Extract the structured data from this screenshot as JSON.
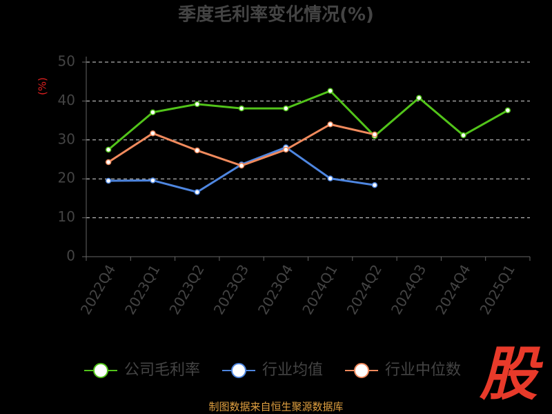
{
  "chart_data": {
    "type": "line",
    "title": "季度毛利率变化情况(%)",
    "y_label": "(%)",
    "categories": [
      "2022Q4",
      "2023Q1",
      "2023Q2",
      "2023Q3",
      "2023Q4",
      "2024Q1",
      "2024Q2",
      "2024Q3",
      "2024Q4",
      "2025Q1"
    ],
    "series": [
      {
        "name": "公司毛利率",
        "color": "#52c41a",
        "values": [
          27.5,
          37.1,
          39.2,
          38.1,
          38.1,
          42.6,
          31.0,
          40.8,
          31.2,
          37.6
        ]
      },
      {
        "name": "行业均值",
        "color": "#4e86e0",
        "values": [
          19.5,
          19.6,
          16.6,
          23.7,
          28.1,
          20.1,
          18.4,
          null,
          null,
          null
        ]
      },
      {
        "name": "行业中位数",
        "color": "#f08a5d",
        "values": [
          24.3,
          31.7,
          27.3,
          23.4,
          27.5,
          34.0,
          31.4,
          null,
          null,
          null
        ]
      }
    ],
    "ylim": [
      0,
      50
    ],
    "yticks": [
      0,
      10,
      20,
      30,
      40,
      50
    ],
    "grid": true,
    "source": "制图数据来自恒生聚源数据库",
    "logo": "股"
  }
}
